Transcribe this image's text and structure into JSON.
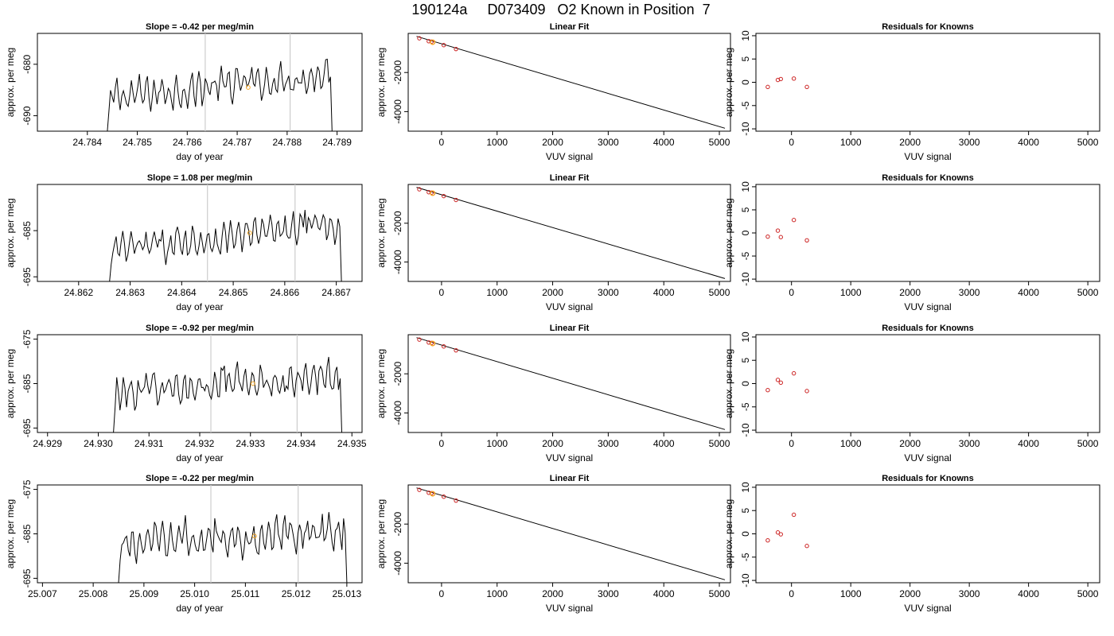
{
  "figure": {
    "title": "190124a     D073409   O2 Known in Position  7"
  },
  "colors": {
    "line": "#000000",
    "marker_red": "#cc2222",
    "marker_orange": "#f5a623",
    "vline": "#cccccc"
  },
  "chart_data": [
    {
      "type": "line",
      "row": 0,
      "col": 0,
      "title": "Slope =  -0.42  per meg/min",
      "xlabel": "day of year",
      "ylabel": "approx. per meg",
      "xlim": [
        24.783,
        24.7895
      ],
      "ylim": [
        -693,
        -674
      ],
      "xticks": [
        24.784,
        24.785,
        24.786,
        24.787,
        24.788,
        24.789
      ],
      "yticks": [
        -690,
        -680
      ],
      "xtick_labels": [
        "24.784",
        "24.785",
        "24.786",
        "24.787",
        "24.788",
        "24.789"
      ],
      "ytick_labels": [
        "-690",
        "-680"
      ],
      "start_x": 24.7844,
      "end_x": 24.7889,
      "start_y": -693,
      "end_y": -693,
      "base": -686.5,
      "trend": 4.5,
      "noise": 2.6,
      "peak_x": 24.7888,
      "peak_y": -679.0,
      "vlines": [
        24.78636,
        24.78806
      ],
      "highlight": {
        "x": 24.78722,
        "y": -684.5
      }
    },
    {
      "type": "line",
      "row": 0,
      "col": 1,
      "title": "Linear Fit",
      "xlabel": "VUV signal",
      "ylabel": "approx. per meg",
      "xlim": [
        -600,
        5200
      ],
      "ylim": [
        -5000,
        0
      ],
      "xticks": [
        0,
        1000,
        2000,
        3000,
        4000,
        5000
      ],
      "yticks": [
        -4000,
        -2000
      ],
      "xtick_labels": [
        "0",
        "1000",
        "2000",
        "3000",
        "4000",
        "5000"
      ],
      "ytick_labels": [
        "-4000",
        "-2000"
      ],
      "fit_line": {
        "x": [
          -450,
          5100
        ],
        "y": [
          -150,
          -4850
        ]
      },
      "points": {
        "x": [
          -400,
          -230,
          -180,
          40,
          260
        ],
        "y": [
          -250,
          -400,
          -420,
          -600,
          -800
        ]
      },
      "highlight": {
        "x": -160,
        "y": -450
      }
    },
    {
      "type": "scatter",
      "row": 0,
      "col": 2,
      "title": "Residuals for Knowns",
      "xlabel": "VUV signal",
      "ylabel": "approx. per meg",
      "xlim": [
        -600,
        5200
      ],
      "ylim": [
        -10.5,
        10.5
      ],
      "xticks": [
        0,
        1000,
        2000,
        3000,
        4000,
        5000
      ],
      "yticks": [
        -10,
        -5,
        0,
        5,
        10
      ],
      "xtick_labels": [
        "0",
        "1000",
        "2000",
        "3000",
        "4000",
        "5000"
      ],
      "ytick_labels": [
        "-10",
        "-5",
        "0",
        "5",
        "10"
      ],
      "points": {
        "x": [
          -400,
          -230,
          -180,
          40,
          260
        ],
        "y": [
          -1.0,
          0.5,
          0.7,
          0.8,
          -1.0
        ]
      }
    },
    {
      "type": "line",
      "row": 1,
      "col": 0,
      "title": "Slope =  1.08  per meg/min",
      "xlabel": "day of year",
      "ylabel": "approx. per meg",
      "xlim": [
        24.8612,
        24.8675
      ],
      "ylim": [
        -696,
        -675
      ],
      "xticks": [
        24.862,
        24.863,
        24.864,
        24.865,
        24.866,
        24.867
      ],
      "yticks": [
        -695,
        -685
      ],
      "xtick_labels": [
        "24.862",
        "24.863",
        "24.864",
        "24.865",
        "24.866",
        "24.867"
      ],
      "ytick_labels": [
        "-695",
        "-685"
      ],
      "start_x": 24.8626,
      "end_x": 24.8671,
      "start_y": -696,
      "end_y": -696,
      "base": -689.5,
      "trend": 6.0,
      "noise": 2.8,
      "peak_x": 24.86638,
      "peak_y": -680.5,
      "vlines": [
        24.8645,
        24.8662
      ],
      "highlight": {
        "x": 24.86532,
        "y": -685.5
      }
    },
    {
      "type": "line",
      "row": 1,
      "col": 1,
      "title": "Linear Fit",
      "xlabel": "VUV signal",
      "ylabel": "approx. per meg",
      "xlim": [
        -600,
        5200
      ],
      "ylim": [
        -5000,
        0
      ],
      "xticks": [
        0,
        1000,
        2000,
        3000,
        4000,
        5000
      ],
      "yticks": [
        -4000,
        -2000
      ],
      "xtick_labels": [
        "0",
        "1000",
        "2000",
        "3000",
        "4000",
        "5000"
      ],
      "ytick_labels": [
        "-4000",
        "-2000"
      ],
      "fit_line": {
        "x": [
          -450,
          5100
        ],
        "y": [
          -150,
          -4850
        ]
      },
      "points": {
        "x": [
          -400,
          -230,
          -180,
          40,
          260
        ],
        "y": [
          -250,
          -400,
          -420,
          -600,
          -800
        ]
      },
      "highlight": {
        "x": -160,
        "y": -450
      }
    },
    {
      "type": "scatter",
      "row": 1,
      "col": 2,
      "title": "Residuals for Knowns",
      "xlabel": "VUV signal",
      "ylabel": "approx. per meg",
      "xlim": [
        -600,
        5200
      ],
      "ylim": [
        -10.5,
        10.5
      ],
      "xticks": [
        0,
        1000,
        2000,
        3000,
        4000,
        5000
      ],
      "yticks": [
        -10,
        -5,
        0,
        5,
        10
      ],
      "xtick_labels": [
        "0",
        "1000",
        "2000",
        "3000",
        "4000",
        "5000"
      ],
      "ytick_labels": [
        "-10",
        "-5",
        "0",
        "5",
        "10"
      ],
      "points": {
        "x": [
          -400,
          -230,
          -180,
          40,
          260
        ],
        "y": [
          -0.8,
          0.5,
          -0.9,
          2.8,
          -1.6
        ]
      }
    },
    {
      "type": "line",
      "row": 2,
      "col": 0,
      "title": "Slope =  -0.92  per meg/min",
      "xlabel": "day of year",
      "ylabel": "approx. per meg",
      "xlim": [
        24.9288,
        24.9352
      ],
      "ylim": [
        -696,
        -674
      ],
      "xticks": [
        24.929,
        24.93,
        24.931,
        24.932,
        24.933,
        24.934,
        24.935
      ],
      "yticks": [
        -695,
        -685,
        -675
      ],
      "xtick_labels": [
        "24.929",
        "24.930",
        "24.931",
        "24.932",
        "24.933",
        "24.934",
        "24.935"
      ],
      "ytick_labels": [
        "-695",
        "-685",
        "-675"
      ],
      "start_x": 24.9303,
      "end_x": 24.9348,
      "start_y": -696,
      "end_y": -696,
      "base": -687.0,
      "trend": 3.5,
      "noise": 3.2,
      "peak_x": 24.9325,
      "peak_y": -681.0,
      "vlines": [
        24.93222,
        24.93392
      ],
      "highlight": {
        "x": 24.93305,
        "y": -685.0
      }
    },
    {
      "type": "line",
      "row": 2,
      "col": 1,
      "title": "Linear Fit",
      "xlabel": "VUV signal",
      "ylabel": "approx. per meg",
      "xlim": [
        -600,
        5200
      ],
      "ylim": [
        -5000,
        0
      ],
      "xticks": [
        0,
        1000,
        2000,
        3000,
        4000,
        5000
      ],
      "yticks": [
        -4000,
        -2000
      ],
      "xtick_labels": [
        "0",
        "1000",
        "2000",
        "3000",
        "4000",
        "5000"
      ],
      "ytick_labels": [
        "-4000",
        "-2000"
      ],
      "fit_line": {
        "x": [
          -450,
          5100
        ],
        "y": [
          -150,
          -4850
        ]
      },
      "points": {
        "x": [
          -400,
          -230,
          -180,
          40,
          260
        ],
        "y": [
          -250,
          -400,
          -420,
          -600,
          -800
        ]
      },
      "highlight": {
        "x": -160,
        "y": -450
      }
    },
    {
      "type": "scatter",
      "row": 2,
      "col": 2,
      "title": "Residuals for Knowns",
      "xlabel": "VUV signal",
      "ylabel": "approx. per meg",
      "xlim": [
        -600,
        5200
      ],
      "ylim": [
        -10.5,
        10.5
      ],
      "xticks": [
        0,
        1000,
        2000,
        3000,
        4000,
        5000
      ],
      "yticks": [
        -10,
        -5,
        0,
        5,
        10
      ],
      "xtick_labels": [
        "0",
        "1000",
        "2000",
        "3000",
        "4000",
        "5000"
      ],
      "ytick_labels": [
        "-10",
        "-5",
        "0",
        "5",
        "10"
      ],
      "points": {
        "x": [
          -400,
          -230,
          -180,
          40,
          260
        ],
        "y": [
          -1.4,
          0.8,
          0.2,
          2.2,
          -1.6
        ]
      }
    },
    {
      "type": "line",
      "row": 3,
      "col": 0,
      "title": "Slope =  -0.22  per meg/min",
      "xlabel": "day of year",
      "ylabel": "approx. per meg",
      "xlim": [
        25.0069,
        25.0133
      ],
      "ylim": [
        -696,
        -674
      ],
      "xticks": [
        25.007,
        25.008,
        25.009,
        25.01,
        25.011,
        25.012,
        25.013
      ],
      "yticks": [
        -695,
        -685,
        -675
      ],
      "xtick_labels": [
        "25.007",
        "25.008",
        "25.009",
        "25.010",
        "25.011",
        "25.012",
        "25.013"
      ],
      "ytick_labels": [
        "-695",
        "-685",
        "-675"
      ],
      "start_x": 25.0085,
      "end_x": 25.013,
      "start_y": -696,
      "end_y": -696,
      "base": -687.5,
      "trend": 3.0,
      "noise": 3.4,
      "peak_x": 25.0104,
      "peak_y": -681.5,
      "vlines": [
        25.01032,
        25.01204
      ],
      "highlight": {
        "x": 25.01118,
        "y": -685.5
      }
    },
    {
      "type": "line",
      "row": 3,
      "col": 1,
      "title": "Linear Fit",
      "xlabel": "VUV signal",
      "ylabel": "approx. per meg",
      "xlim": [
        -600,
        5200
      ],
      "ylim": [
        -5000,
        0
      ],
      "xticks": [
        0,
        1000,
        2000,
        3000,
        4000,
        5000
      ],
      "yticks": [
        -4000,
        -2000
      ],
      "xtick_labels": [
        "0",
        "1000",
        "2000",
        "3000",
        "4000",
        "5000"
      ],
      "ytick_labels": [
        "-4000",
        "-2000"
      ],
      "fit_line": {
        "x": [
          -450,
          5100
        ],
        "y": [
          -150,
          -4850
        ]
      },
      "points": {
        "x": [
          -400,
          -230,
          -180,
          40,
          260
        ],
        "y": [
          -250,
          -400,
          -420,
          -600,
          -800
        ]
      },
      "highlight": {
        "x": -160,
        "y": -450
      }
    },
    {
      "type": "scatter",
      "row": 3,
      "col": 2,
      "title": "Residuals for Knowns",
      "xlabel": "VUV signal",
      "ylabel": "approx. per meg",
      "xlim": [
        -600,
        5200
      ],
      "ylim": [
        -10.5,
        10.5
      ],
      "xticks": [
        0,
        1000,
        2000,
        3000,
        4000,
        5000
      ],
      "yticks": [
        -10,
        -5,
        0,
        5,
        10
      ],
      "xtick_labels": [
        "0",
        "1000",
        "2000",
        "3000",
        "4000",
        "5000"
      ],
      "ytick_labels": [
        "-10",
        "-5",
        "0",
        "5",
        "10"
      ],
      "points": {
        "x": [
          -400,
          -230,
          -180,
          40,
          260
        ],
        "y": [
          -1.4,
          0.3,
          -0.1,
          4.1,
          -2.6
        ]
      }
    }
  ]
}
